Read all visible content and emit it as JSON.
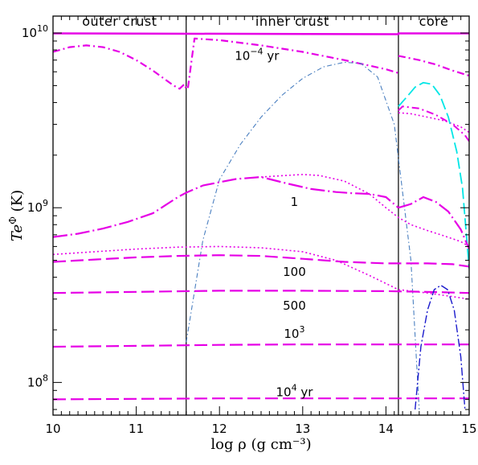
{
  "chart_data": {
    "type": "line",
    "title": "",
    "xlabel": "log ρ (g cm⁻³)",
    "ylabel": "Te^Φ (K)",
    "xlim": [
      10,
      15
    ],
    "ylim": [
      65000000.0,
      12500000000.0
    ],
    "yscale": "log",
    "x_ticks": [
      "10",
      "11",
      "12",
      "13",
      "14",
      "15"
    ],
    "y_ticks": [
      {
        "value": 100000000.0,
        "base": "10",
        "exp": "8"
      },
      {
        "value": 1000000000.0,
        "base": "10",
        "exp": "9"
      },
      {
        "value": 10000000000.0,
        "base": "10",
        "exp": "10"
      }
    ],
    "regions": [
      {
        "label": "outer crust",
        "x_start": 10,
        "x_end": 11.6
      },
      {
        "label": "inner crust",
        "x_start": 11.6,
        "x_end": 14.15
      },
      {
        "label": "core",
        "x_start": 14.15,
        "x_end": 15
      }
    ],
    "region_boundaries": [
      11.6,
      14.15
    ],
    "colors": {
      "magenta": "#e600e6",
      "cyan": "#00e6e6",
      "steelblue": "#4a7fc0",
      "navy": "#1a1acc"
    },
    "curve_labels": [
      {
        "text": "10",
        "sup": "−4",
        "suffix": " yr",
        "x": 12.45,
        "y": 7400000000.0
      },
      {
        "text": "1",
        "sup": "",
        "suffix": "",
        "x": 12.9,
        "y": 1080000000.0
      },
      {
        "text": "100",
        "sup": "",
        "suffix": "",
        "x": 12.9,
        "y": 430000000.0
      },
      {
        "text": "500",
        "sup": "",
        "suffix": "",
        "x": 12.9,
        "y": 275000000.0
      },
      {
        "text": "10",
        "sup": "3",
        "suffix": "",
        "x": 12.9,
        "y": 190000000.0
      },
      {
        "text": "10",
        "sup": "4",
        "suffix": " yr",
        "x": 12.9,
        "y": 88000000.0
      }
    ],
    "series": [
      {
        "color": "#e600e6",
        "dash": "",
        "width": 2.5,
        "x": [
          10.0,
          14.15,
          14.15,
          15.0
        ],
        "y": [
          9950000000.0,
          9850000000.0,
          9950000000.0,
          9950000000.0
        ]
      },
      {
        "color": "#e600e6",
        "dash": "9,4,2,4",
        "width": 2.2,
        "x": [
          10.0,
          10.2,
          10.4,
          10.6,
          10.8,
          11.0,
          11.2,
          11.45,
          11.52,
          11.58,
          11.6,
          11.62,
          11.7,
          12.0,
          12.5,
          13.0,
          13.5,
          14.0,
          14.15
        ],
        "y": [
          7800000000.0,
          8300000000.0,
          8500000000.0,
          8300000000.0,
          7800000000.0,
          7000000000.0,
          6100000000.0,
          5000000000.0,
          4800000000.0,
          5100000000.0,
          4800000000.0,
          4800000000.0,
          9300000000.0,
          9100000000.0,
          8500000000.0,
          7800000000.0,
          7000000000.0,
          6200000000.0,
          5900000000.0
        ]
      },
      {
        "color": "#e600e6",
        "dash": "9,4,2,4",
        "width": 2.2,
        "x": [
          14.15,
          14.4,
          14.6,
          14.8,
          15.0
        ],
        "y": [
          7400000000.0,
          7000000000.0,
          6600000000.0,
          6100000000.0,
          5700000000.0
        ]
      },
      {
        "color": "#e600e6",
        "dash": "9,4,2,4",
        "width": 2.0,
        "x": [
          14.15,
          14.2,
          14.4,
          14.6,
          14.8,
          14.95,
          15.0
        ],
        "y": [
          3600000000.0,
          3800000000.0,
          3700000000.0,
          3400000000.0,
          3000000000.0,
          2600000000.0,
          2400000000.0
        ]
      },
      {
        "color": "#e600e6",
        "dash": "2,3",
        "width": 1.6,
        "x": [
          14.15,
          14.3,
          14.5,
          14.7,
          14.9,
          15.0
        ],
        "y": [
          3500000000.0,
          3450000000.0,
          3300000000.0,
          3150000000.0,
          2900000000.0,
          2700000000.0
        ]
      },
      {
        "color": "#00e6e6",
        "dash": "14,5",
        "width": 1.8,
        "x": [
          14.15,
          14.25,
          14.35,
          14.45,
          14.55,
          14.65,
          14.75,
          14.85,
          14.92,
          15.0
        ],
        "y": [
          3800000000.0,
          4300000000.0,
          4900000000.0,
          5200000000.0,
          5100000000.0,
          4400000000.0,
          3300000000.0,
          2100000000.0,
          1300000000.0,
          450000000.0
        ]
      },
      {
        "color": "#4a7fc0",
        "dash": "6,3,1.5,3",
        "width": 1.1,
        "x": [
          11.6,
          11.8,
          12.0,
          12.25,
          12.5,
          12.75,
          13.0,
          13.25,
          13.5,
          13.7,
          13.9,
          14.1,
          14.3,
          14.4
        ],
        "y": [
          170000000.0,
          650000000.0,
          1450000000.0,
          2300000000.0,
          3300000000.0,
          4400000000.0,
          5500000000.0,
          6400000000.0,
          6800000000.0,
          6700000000.0,
          5600000000.0,
          3000000000.0,
          500000000.0,
          70000000.0
        ]
      },
      {
        "color": "#e600e6",
        "dash": "18,4,2,4",
        "width": 2.2,
        "x": [
          10.0,
          10.3,
          10.6,
          10.9,
          11.2,
          11.5,
          11.6,
          11.8,
          12.0,
          12.2,
          12.5,
          12.8,
          13.1,
          13.4,
          13.6,
          13.8,
          14.0,
          14.15
        ],
        "y": [
          680000000.0,
          710000000.0,
          760000000.0,
          830000000.0,
          930000000.0,
          1150000000.0,
          1220000000.0,
          1340000000.0,
          1400000000.0,
          1460000000.0,
          1500000000.0,
          1380000000.0,
          1280000000.0,
          1230000000.0,
          1210000000.0,
          1200000000.0,
          1150000000.0,
          1000000000.0
        ]
      },
      {
        "color": "#e600e6",
        "dash": "18,4,2,4",
        "width": 2.2,
        "x": [
          14.15,
          14.3,
          14.45,
          14.6,
          14.75,
          14.9,
          15.0
        ],
        "y": [
          1000000000.0,
          1050000000.0,
          1150000000.0,
          1080000000.0,
          950000000.0,
          750000000.0,
          580000000.0
        ]
      },
      {
        "color": "#e600e6",
        "dash": "2,3",
        "width": 1.6,
        "x": [
          12.5,
          12.8,
          13.0,
          13.2,
          13.5,
          13.8,
          14.0,
          14.15,
          14.3,
          14.5,
          14.7,
          14.9,
          15.0
        ],
        "y": [
          1500000000.0,
          1530000000.0,
          1550000000.0,
          1530000000.0,
          1420000000.0,
          1200000000.0,
          1000000000.0,
          880000000.0,
          800000000.0,
          740000000.0,
          690000000.0,
          640000000.0,
          600000000.0
        ]
      },
      {
        "color": "#e600e6",
        "dash": "2,3",
        "width": 1.6,
        "x": [
          10.0,
          10.5,
          11.0,
          11.5,
          12.0,
          12.5,
          13.0,
          13.4,
          13.8,
          14.15,
          14.5,
          14.8,
          15.0
        ],
        "y": [
          540000000.0,
          560000000.0,
          580000000.0,
          595000000.0,
          600000000.0,
          590000000.0,
          560000000.0,
          500000000.0,
          410000000.0,
          340000000.0,
          325000000.0,
          310000000.0,
          300000000.0
        ]
      },
      {
        "color": "#e600e6",
        "dash": "16,6",
        "width": 2.2,
        "x": [
          10.0,
          10.5,
          11.0,
          11.5,
          12.0,
          12.5,
          13.0,
          13.5,
          14.0,
          14.15,
          14.5,
          14.8,
          15.0
        ],
        "y": [
          490000000.0,
          505000000.0,
          520000000.0,
          530000000.0,
          535000000.0,
          530000000.0,
          510000000.0,
          490000000.0,
          480000000.0,
          480000000.0,
          480000000.0,
          475000000.0,
          460000000.0
        ]
      },
      {
        "color": "#e600e6",
        "dash": "16,6",
        "width": 2.2,
        "x": [
          10.0,
          11.0,
          12.0,
          13.0,
          14.0,
          14.5,
          15.0
        ],
        "y": [
          325000000.0,
          330000000.0,
          335000000.0,
          335000000.0,
          333000000.0,
          330000000.0,
          325000000.0
        ]
      },
      {
        "color": "#e600e6",
        "dash": "16,6",
        "width": 2.2,
        "x": [
          10.0,
          11.0,
          12.0,
          13.0,
          14.0,
          15.0
        ],
        "y": [
          160000000.0,
          162000000.0,
          164000000.0,
          165000000.0,
          165000000.0,
          165000000.0
        ]
      },
      {
        "color": "#e600e6",
        "dash": "16,6",
        "width": 2.2,
        "x": [
          10.0,
          11.0,
          12.0,
          13.0,
          14.0,
          15.0
        ],
        "y": [
          80000000.0,
          80500000.0,
          81000000.0,
          81000000.0,
          81000000.0,
          81000000.0
        ]
      },
      {
        "color": "#1a1acc",
        "dash": "10,3,2,3",
        "width": 1.4,
        "x": [
          14.35,
          14.42,
          14.5,
          14.58,
          14.66,
          14.74,
          14.82,
          14.9,
          14.95
        ],
        "y": [
          70000000.0,
          160000000.0,
          260000000.0,
          340000000.0,
          360000000.0,
          340000000.0,
          260000000.0,
          140000000.0,
          70000000.0
        ]
      }
    ]
  }
}
